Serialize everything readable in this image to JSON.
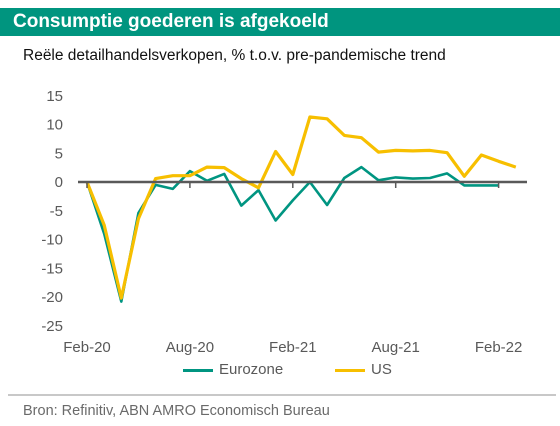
{
  "header": {
    "title": "Consumptie goederen is afgekoeld",
    "subtitle": "Reële detailhandelsverkopen, % t.o.v. pre-pandemische trend"
  },
  "colors": {
    "header_bg": "#00957f",
    "eurozone": "#009581",
    "us": "#f7bf00",
    "zero_line": "#595959"
  },
  "chart_data": {
    "type": "line",
    "x": [
      "Feb-20",
      "Mar-20",
      "Apr-20",
      "May-20",
      "Jun-20",
      "Jul-20",
      "Aug-20",
      "Sep-20",
      "Oct-20",
      "Nov-20",
      "Dec-20",
      "Jan-21",
      "Feb-21",
      "Mar-21",
      "Apr-21",
      "May-21",
      "Jun-21",
      "Jul-21",
      "Aug-21",
      "Sep-21",
      "Oct-21",
      "Nov-21",
      "Dec-21",
      "Jan-22",
      "Feb-22",
      "Mar-22"
    ],
    "x_tick_labels": [
      "Feb-20",
      "Aug-20",
      "Feb-21",
      "Aug-21",
      "Feb-22"
    ],
    "y_ticks": [
      15,
      10,
      5,
      0,
      -5,
      -10,
      -15,
      -20,
      -25
    ],
    "ylim": [
      -25,
      15
    ],
    "series": [
      {
        "name": "Eurozone",
        "color": "#009581",
        "values": [
          0,
          -9.0,
          -20.8,
          -5.4,
          -0.5,
          -1.2,
          1.9,
          0.2,
          1.4,
          -4.1,
          -1.4,
          -6.7,
          -3.2,
          0.0,
          -4.0,
          0.7,
          2.6,
          0.3,
          0.8,
          0.6,
          0.7,
          1.5,
          -0.6,
          -0.6,
          -0.6,
          null
        ]
      },
      {
        "name": "US",
        "color": "#f7bf00",
        "values": [
          0,
          -7.5,
          -20.2,
          -6.4,
          0.6,
          1.1,
          1.1,
          2.6,
          2.5,
          0.6,
          -1.0,
          5.3,
          1.3,
          11.3,
          11.0,
          8.1,
          7.7,
          5.2,
          5.5,
          5.4,
          5.5,
          5.1,
          1.0,
          4.7,
          3.6,
          2.6
        ]
      }
    ]
  },
  "legend": {
    "items": [
      {
        "label": "Eurozone"
      },
      {
        "label": "US"
      }
    ]
  },
  "footer": {
    "source": "Bron: Refinitiv, ABN AMRO Economisch Bureau"
  }
}
